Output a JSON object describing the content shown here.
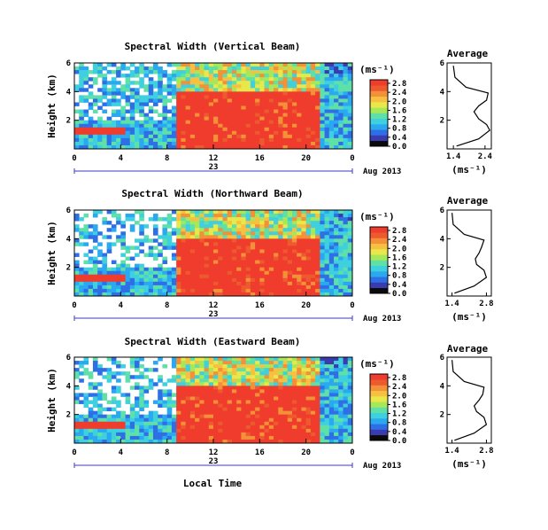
{
  "colors": {
    "colormap": [
      "#0a0a0a",
      "#3b3bb0",
      "#2f6fe6",
      "#2aa8f0",
      "#3fd0e0",
      "#5ee0a8",
      "#a6e85a",
      "#e8e84a",
      "#f8c040",
      "#f39038",
      "#ee5a2f",
      "#ef3c2c"
    ],
    "frame": "#000000",
    "profile_line": "#000000"
  },
  "x_axis": {
    "ticks": [
      "0",
      "4",
      "8",
      "12",
      "16",
      "20",
      "0"
    ],
    "day": "23",
    "date": "Aug 2013",
    "label": "Local Time"
  },
  "y_axis": {
    "label": "Height (km)",
    "ticks": [
      "6",
      "4",
      "2"
    ]
  },
  "colorbar": {
    "unit": "(ms⁻¹)",
    "ticks": [
      "2.8",
      "2.4",
      "2.0",
      "1.6",
      "1.2",
      "0.8",
      "0.4",
      "0.0"
    ]
  },
  "chart_data": [
    {
      "type": "heatmap",
      "title": "Spectral Width (Vertical Beam)",
      "xlabel": "",
      "ylabel": "Height (km)",
      "xlim": [
        0,
        24
      ],
      "ylim": [
        0,
        6
      ],
      "colorbar_range": [
        0,
        3.0
      ],
      "high_region": {
        "time_start": 9,
        "time_end": 21,
        "height_max": 4.0
      }
    },
    {
      "type": "line",
      "title": "Average",
      "xlabel": "(ms⁻¹)",
      "ylabel": "",
      "x_ticks": [
        "1.4",
        "2.4"
      ],
      "xlim": [
        1.2,
        2.6
      ],
      "ylim": [
        0,
        6
      ],
      "y_ticks": [
        "6",
        "4",
        "2"
      ],
      "series": [
        {
          "x": [
            1.5,
            2.2,
            2.55,
            2.45,
            2.2,
            2.05,
            2.2,
            2.45,
            2.5,
            1.8,
            1.45,
            1.4
          ],
          "y": [
            0.2,
            0.7,
            1.3,
            1.7,
            2.1,
            2.6,
            3.0,
            3.4,
            3.9,
            4.3,
            5.0,
            5.8
          ]
        }
      ]
    },
    {
      "type": "heatmap",
      "title": "Spectral Width (Northward Beam)",
      "xlabel": "",
      "ylabel": "Height (km)",
      "xlim": [
        0,
        24
      ],
      "ylim": [
        0,
        6
      ],
      "colorbar_range": [
        0,
        3.0
      ],
      "high_region": {
        "time_start": 9,
        "time_end": 21,
        "height_max": 4.0
      }
    },
    {
      "type": "line",
      "title": "Average",
      "xlabel": "(ms⁻¹)",
      "ylabel": "",
      "x_ticks": [
        "1.4",
        "2.8"
      ],
      "xlim": [
        1.2,
        3.0
      ],
      "ylim": [
        0,
        6
      ],
      "y_ticks": [
        "6",
        "4",
        "2"
      ],
      "series": [
        {
          "x": [
            1.5,
            2.3,
            2.8,
            2.7,
            2.4,
            2.35,
            2.5,
            2.6,
            2.7,
            1.9,
            1.45,
            1.4
          ],
          "y": [
            0.2,
            0.7,
            1.3,
            1.8,
            2.2,
            2.6,
            3.0,
            3.4,
            3.9,
            4.3,
            5.0,
            5.8
          ]
        }
      ]
    },
    {
      "type": "heatmap",
      "title": "Spectral Width (Eastward Beam)",
      "xlabel": "Local Time",
      "ylabel": "Height (km)",
      "xlim": [
        0,
        24
      ],
      "ylim": [
        0,
        6
      ],
      "colorbar_range": [
        0,
        3.0
      ],
      "high_region": {
        "time_start": 9,
        "time_end": 21,
        "height_max": 4.0
      }
    },
    {
      "type": "line",
      "title": "Average",
      "xlabel": "(ms⁻¹)",
      "ylabel": "",
      "x_ticks": [
        "1.4",
        "2.8"
      ],
      "xlim": [
        1.2,
        3.0
      ],
      "ylim": [
        0,
        6
      ],
      "y_ticks": [
        "6",
        "4",
        "2"
      ],
      "series": [
        {
          "x": [
            1.5,
            2.3,
            2.8,
            2.7,
            2.4,
            2.3,
            2.5,
            2.65,
            2.7,
            1.9,
            1.45,
            1.4
          ],
          "y": [
            0.2,
            0.7,
            1.3,
            1.8,
            2.2,
            2.6,
            3.0,
            3.4,
            3.9,
            4.3,
            5.0,
            5.8
          ]
        }
      ]
    }
  ]
}
